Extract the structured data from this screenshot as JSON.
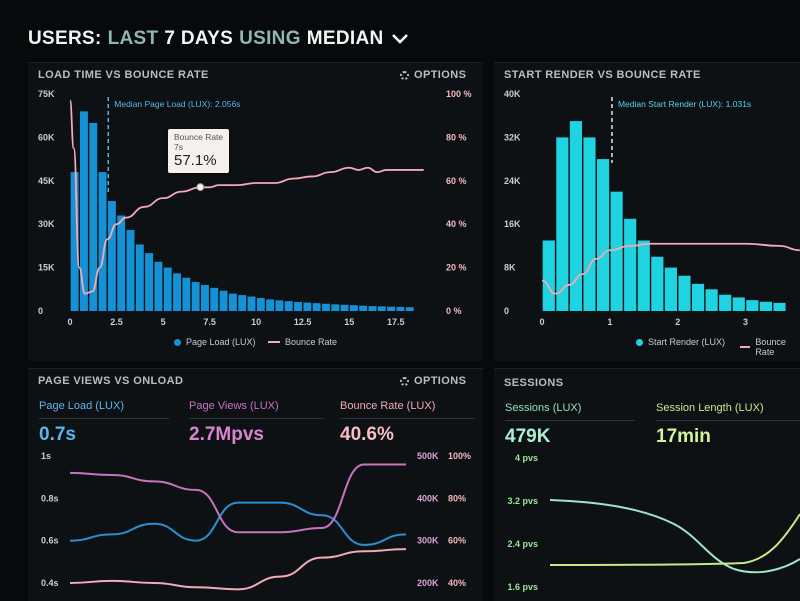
{
  "header": {
    "part1": "USERS:",
    "part2": "LAST",
    "part3": "7 DAYS",
    "part4": "USING",
    "part5": "MEDIAN",
    "chevron_icon": "chevron-down-icon"
  },
  "panels": {
    "load": {
      "title": "LOAD TIME VS BOUNCE RATE",
      "options": "OPTIONS"
    },
    "render": {
      "title": "START RENDER VS BOUNCE RATE"
    },
    "pageviews": {
      "title": "PAGE VIEWS VS ONLOAD",
      "options": "OPTIONS"
    },
    "sessions": {
      "title": "SESSIONS"
    }
  },
  "colors": {
    "blue": "#1592d6",
    "cyan": "#1fd3e0",
    "pink": "#f4a9b6",
    "magenta": "#c773bf",
    "green": "#9be59a",
    "aqua": "#9ee6c4"
  },
  "chart_data": [
    {
      "type": "bar",
      "name": "load-time-vs-bounce",
      "title": "LOAD TIME VS BOUNCE RATE",
      "x_ticks": [
        "0",
        "2.5",
        "5",
        "7.5",
        "10",
        "12.5",
        "15",
        "17.5"
      ],
      "y_ticks": [
        "0",
        "15K",
        "30K",
        "45K",
        "60K",
        "75K"
      ],
      "y2_ticks": [
        "0 %",
        "20 %",
        "40 %",
        "60 %",
        "80 %",
        "100 %"
      ],
      "ylim": [
        0,
        75000
      ],
      "y2lim": [
        0,
        100
      ],
      "bin_width": 0.5,
      "bars": [
        48000,
        69000,
        65000,
        48000,
        38000,
        33000,
        28000,
        23000,
        20000,
        17000,
        15000,
        13000,
        11500,
        10000,
        9000,
        8000,
        7000,
        6000,
        5500,
        5000,
        4500,
        4000,
        3700,
        3400,
        3100,
        2900,
        2700,
        2500,
        2300,
        2150,
        2000,
        1850,
        1700,
        1600,
        1500,
        1400,
        1300
      ],
      "bounce_x": [
        0,
        0.2,
        0.5,
        0.8,
        1.2,
        1.6,
        2,
        2.5,
        3,
        4,
        5,
        6,
        7,
        7.5,
        8,
        9,
        10,
        11,
        12,
        13,
        14,
        15,
        15.5,
        16,
        16.5,
        17,
        17.5,
        18,
        19
      ],
      "bounce_y": [
        97,
        75,
        20,
        8,
        9,
        20,
        33,
        40,
        43,
        48,
        52,
        55,
        57,
        57,
        58,
        58,
        59,
        59,
        61,
        62,
        64,
        66,
        65,
        66,
        64,
        65,
        65,
        65,
        65
      ],
      "median_label": "Median Page Load (LUX): 2.056s",
      "median_x": 2.056,
      "tooltip": {
        "title": "Bounce Rate",
        "sub": "7s",
        "value": "57.1%",
        "x": 7,
        "y": 57.1
      },
      "legend": [
        "Page Load (LUX)",
        "Bounce Rate"
      ]
    },
    {
      "type": "bar",
      "name": "start-render-vs-bounce",
      "title": "START RENDER VS BOUNCE RATE",
      "x_ticks": [
        "0",
        "1",
        "2",
        "3"
      ],
      "y_ticks": [
        "0",
        "8K",
        "16K",
        "24K",
        "32K",
        "40K"
      ],
      "ylim": [
        0,
        40000
      ],
      "bin_width": 0.2,
      "bars": [
        13000,
        32000,
        35000,
        32000,
        28000,
        22000,
        17000,
        13000,
        10000,
        8000,
        6500,
        5000,
        4000,
        3000,
        2500,
        2000,
        1700,
        1500
      ],
      "bounce_x": [
        0,
        0.2,
        0.4,
        0.6,
        0.8,
        1,
        1.3,
        1.6,
        2,
        2.5,
        3,
        3.5,
        3.8
      ],
      "bounce_y": [
        14,
        8,
        12,
        17,
        24,
        28,
        30,
        31,
        31,
        31,
        31,
        30,
        28
      ],
      "median_label": "Median Start Render (LUX): 1.031s",
      "median_x": 1.031,
      "legend": [
        "Start Render (LUX)",
        "Bounce Rate"
      ]
    },
    {
      "type": "line",
      "name": "page-views-vs-onload",
      "y_ticks": [
        "0.4s",
        "0.6s",
        "0.8s",
        "1s"
      ],
      "y2_ticks": [
        "200K",
        "300K",
        "400K",
        "500K"
      ],
      "y3_ticks": [
        "40%",
        "60%",
        "80%",
        "100%"
      ],
      "x": [
        0,
        1,
        2,
        3,
        4,
        5,
        6,
        7,
        8
      ],
      "series": [
        {
          "name": "Page Load (LUX)",
          "values": [
            0.6,
            0.63,
            0.68,
            0.6,
            0.78,
            0.78,
            0.72,
            0.58,
            0.63
          ]
        },
        {
          "name": "Page Views (LUX)",
          "values": [
            460,
            455,
            440,
            420,
            320,
            320,
            330,
            480,
            480
          ]
        },
        {
          "name": "Bounce Rate (LUX)",
          "values": [
            0.4,
            0.41,
            0.4,
            0.38,
            0.37,
            0.43,
            0.52,
            0.55,
            0.56
          ]
        }
      ]
    }
  ],
  "metrics": {
    "page_load": {
      "label": "Page Load (LUX)",
      "value": "0.7s"
    },
    "page_views": {
      "label": "Page Views (LUX)",
      "value": "2.7Mpvs"
    },
    "bounce": {
      "label": "Bounce Rate (LUX)",
      "value": "40.6%"
    },
    "sessions": {
      "label": "Sessions (LUX)",
      "value": "479K"
    },
    "session_length": {
      "label": "Session Length (LUX)",
      "value": "17min"
    }
  },
  "sessions_chart": {
    "y_ticks": [
      "1.6 pvs",
      "2.4 pvs",
      "3.2 pvs",
      "4 pvs"
    ]
  }
}
